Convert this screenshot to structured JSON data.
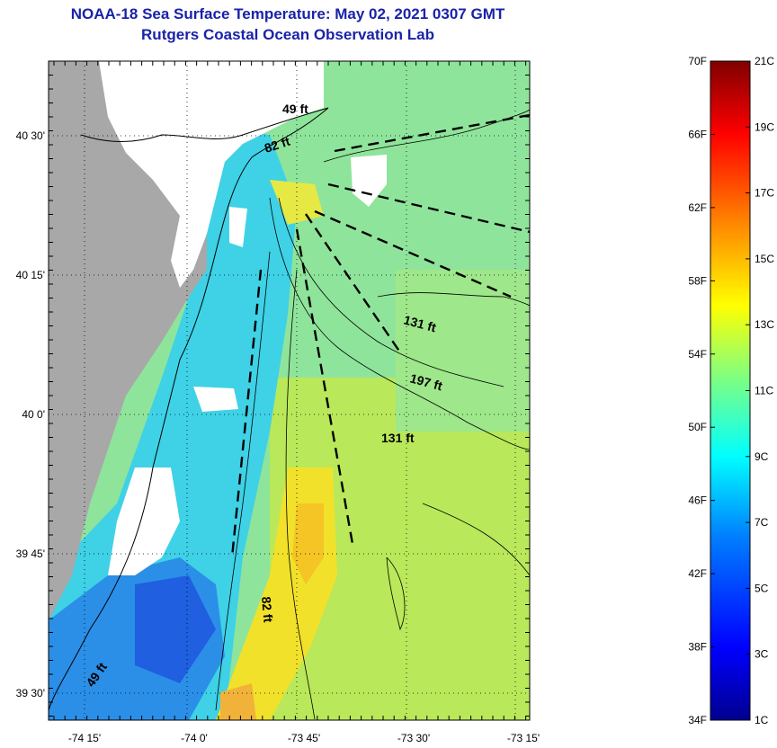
{
  "header": {
    "title": "NOAA-18 Sea Surface Temperature:  May 02, 2021 0307 GMT",
    "subtitle": "Rutgers Coastal Ocean Observation Lab"
  },
  "map": {
    "lat_ticks": [
      {
        "label": "40 30'",
        "value": 40.5
      },
      {
        "label": "40 15'",
        "value": 40.25
      },
      {
        "label": "40 0'",
        "value": 40.0
      },
      {
        "label": "39 45'",
        "value": 39.75
      },
      {
        "label": "39 30'",
        "value": 39.5
      }
    ],
    "lon_ticks": [
      {
        "label": "-74 15'",
        "value": -74.25
      },
      {
        "label": "-74 0'",
        "value": -74.0
      },
      {
        "label": "-73 45'",
        "value": -73.75
      },
      {
        "label": "-73 30'",
        "value": -73.5
      },
      {
        "label": "-73 15'",
        "value": -73.25
      }
    ],
    "depth_labels": [
      "49 ft",
      "82 ft",
      "131 ft",
      "197 ft",
      "131 ft",
      "82 ft",
      "49 ft"
    ],
    "colors": {
      "land": "#a8a8a8",
      "cloud": "#ffffff",
      "grid": "#000000"
    }
  },
  "colorbar": {
    "fahrenheit_labels": [
      "70F",
      "66F",
      "62F",
      "58F",
      "54F",
      "50F",
      "46F",
      "42F",
      "38F",
      "34F"
    ],
    "celsius_labels": [
      "21C",
      "19C",
      "17C",
      "15C",
      "13C",
      "11C",
      "9C",
      "7C",
      "5C",
      "3C",
      "1C"
    ],
    "colors": [
      "#00008f",
      "#0000ff",
      "#0080ff",
      "#00ffff",
      "#80ff80",
      "#ffff00",
      "#ff8000",
      "#ff0000",
      "#800000"
    ]
  }
}
